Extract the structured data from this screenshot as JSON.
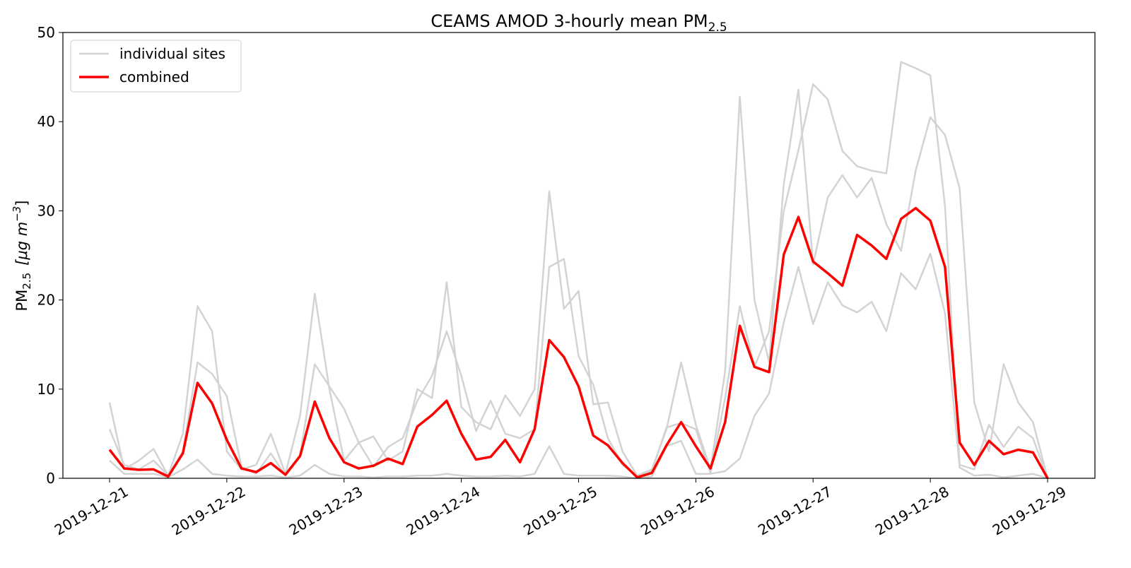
{
  "chart_data": {
    "type": "line",
    "title": "CEAMS AMOD 3-hourly mean PM",
    "title_subscript": "2.5",
    "ylabel": "PM",
    "ylabel_subscript": "2.5",
    "ylabel_units": "[μg m",
    "ylabel_units_sup": "−3",
    "ylabel_units_close": "]",
    "xlabel": "",
    "ylim": [
      0,
      50
    ],
    "yticks": [
      0,
      10,
      20,
      30,
      40,
      50
    ],
    "xtick_labels": [
      "2019-12-21",
      "2019-12-22",
      "2019-12-23",
      "2019-12-24",
      "2019-12-25",
      "2019-12-26",
      "2019-12-27",
      "2019-12-28",
      "2019-12-29"
    ],
    "x_step_hours": 3,
    "legend": {
      "placement": "top-left",
      "entries": [
        "individual sites",
        "combined"
      ]
    },
    "colors": {
      "individual": "#d3d3d3",
      "combined": "#ff0000"
    },
    "series": [
      {
        "name": "combined",
        "values": [
          3.2,
          1.1,
          0.95,
          1.0,
          0.2,
          2.8,
          10.7,
          8.4,
          4.3,
          1.1,
          0.7,
          1.7,
          0.4,
          2.5,
          8.6,
          4.5,
          1.8,
          1.1,
          1.4,
          2.2,
          1.6,
          5.8,
          7.1,
          8.7,
          5.0,
          2.1,
          2.4,
          4.3,
          1.8,
          5.5,
          15.5,
          13.6,
          10.3,
          4.8,
          3.7,
          1.7,
          0.1,
          0.6,
          3.7,
          6.3,
          3.6,
          1.1,
          6.3,
          17.1,
          12.5,
          11.9,
          25.1,
          29.3,
          24.3,
          23.0,
          21.6,
          27.3,
          26.1,
          24.6,
          29.1,
          30.3,
          28.9,
          23.7,
          4.0,
          1.5,
          4.2,
          2.7,
          3.2,
          2.9,
          0.0
        ]
      },
      {
        "name": "individual sites",
        "values": [
          8.5,
          1.0,
          2.0,
          3.3,
          0.3,
          5.0,
          19.3,
          16.5,
          3.0,
          1.0,
          1.5,
          5.0,
          0.5,
          7.0,
          20.7,
          10.0,
          2.0,
          4.0,
          4.7,
          2.0,
          3.0,
          10.0,
          9.0,
          22.0,
          8.0,
          6.3,
          5.5,
          9.3,
          7.0,
          10.0,
          32.2,
          19.0,
          21.0,
          8.3,
          8.5,
          3.0,
          0.3,
          1.0,
          5.5,
          13.0,
          6.0,
          1.0,
          12.0,
          42.8,
          20.0,
          13.0,
          33.0,
          43.6,
          24.0,
          31.5,
          34.0,
          31.5,
          33.7,
          28.5,
          25.5,
          34.5,
          40.5,
          38.5,
          32.5,
          8.5,
          3.0,
          12.8,
          8.5,
          6.3,
          0.0
        ]
      },
      {
        "name": "individual sites",
        "values": [
          5.5,
          1.5,
          1.0,
          2.0,
          0.3,
          3.0,
          13.0,
          11.7,
          9.2,
          1.3,
          0.5,
          2.8,
          0.3,
          2.6,
          12.8,
          10.3,
          7.8,
          4.0,
          1.3,
          3.5,
          4.5,
          8.7,
          11.5,
          16.5,
          11.5,
          5.3,
          8.7,
          5.0,
          4.5,
          5.5,
          23.7,
          24.6,
          13.7,
          10.5,
          4.5,
          1.5,
          0.3,
          0.8,
          5.7,
          6.2,
          5.5,
          0.6,
          9.0,
          19.3,
          12.5,
          16.5,
          30.0,
          36.8,
          44.2,
          42.5,
          36.7,
          35.0,
          34.5,
          34.2,
          46.7,
          46.0,
          45.2,
          30.5,
          1.5,
          1.0,
          6.0,
          3.5,
          5.8,
          4.5,
          0.0
        ]
      },
      {
        "name": "individual sites",
        "values": [
          2.0,
          0.5,
          0.5,
          0.5,
          0.1,
          1.0,
          2.1,
          0.5,
          0.3,
          0.2,
          0.2,
          0.3,
          0.1,
          0.3,
          1.5,
          0.5,
          0.2,
          0.2,
          0.1,
          0.2,
          0.2,
          0.3,
          0.3,
          0.5,
          0.3,
          0.2,
          0.2,
          0.3,
          0.2,
          0.5,
          3.6,
          0.5,
          0.3,
          0.3,
          0.3,
          0.2,
          0.0,
          0.2,
          3.6,
          4.2,
          0.5,
          0.5,
          0.8,
          2.2,
          7.0,
          9.5,
          17.5,
          23.7,
          17.3,
          22.0,
          19.4,
          18.6,
          19.8,
          16.5,
          23.0,
          21.2,
          25.2,
          18.5,
          1.2,
          0.3,
          0.4,
          0.1,
          0.3,
          0.5,
          0.0
        ]
      }
    ]
  }
}
